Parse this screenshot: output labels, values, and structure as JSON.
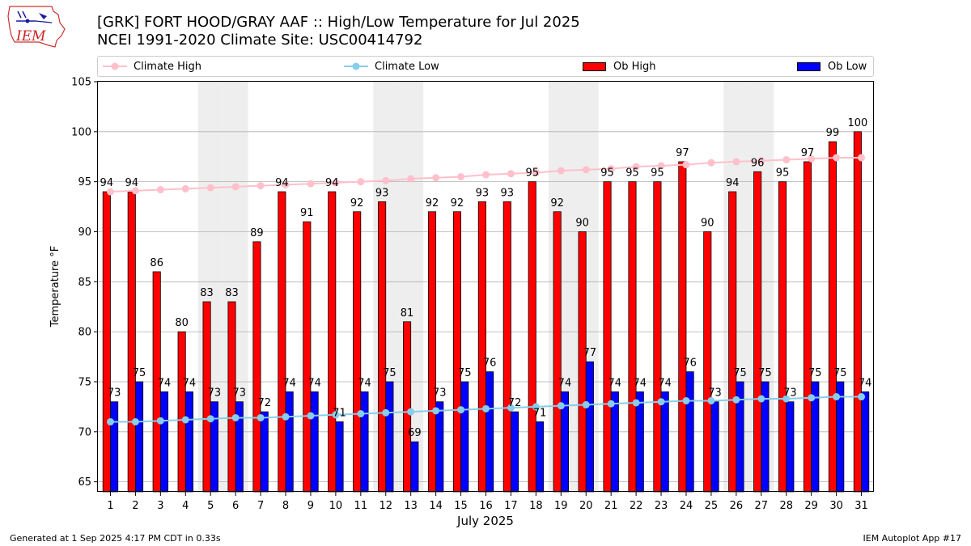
{
  "header": {
    "logo_text": "IEM",
    "title_line1": "[GRK] FORT HOOD/GRAY AAF :: High/Low Temperature for Jul 2025",
    "title_line2": "NCEI 1991-2020 Climate Site: USC00414792"
  },
  "legend": {
    "climate_high": "Climate High",
    "climate_low": "Climate Low",
    "ob_high": "Ob High",
    "ob_low": "Ob Low"
  },
  "colors": {
    "ob_high": "#ff0000",
    "ob_low": "#0000ff",
    "climate_high": "#ffc0cb",
    "climate_low": "#87ceeb",
    "weekend_shade": "#eeeeee",
    "grid": "#b0b0b0"
  },
  "footer": {
    "left": "Generated at 1 Sep 2025 4:17 PM CDT in 0.33s",
    "right": "IEM Autoplot App #17"
  },
  "chart_data": {
    "type": "bar",
    "xlabel": "July 2025",
    "ylabel": "Temperature °F",
    "ylim": [
      64,
      105
    ],
    "yticks": [
      65,
      70,
      75,
      80,
      85,
      90,
      95,
      100,
      105
    ],
    "grid": true,
    "legend_position": "top",
    "categories": [
      "1",
      "2",
      "3",
      "4",
      "5",
      "6",
      "7",
      "8",
      "9",
      "10",
      "11",
      "12",
      "13",
      "14",
      "15",
      "16",
      "17",
      "18",
      "19",
      "20",
      "21",
      "22",
      "23",
      "24",
      "25",
      "26",
      "27",
      "28",
      "29",
      "30",
      "31"
    ],
    "shaded_days": [
      5,
      6,
      12,
      13,
      19,
      20,
      26,
      27
    ],
    "series": [
      {
        "name": "Ob High",
        "kind": "bar",
        "values": [
          94,
          94,
          86,
          80,
          83,
          83,
          89,
          94,
          91,
          94,
          92,
          93,
          81,
          92,
          92,
          93,
          93,
          95,
          92,
          90,
          95,
          95,
          95,
          97,
          90,
          94,
          96,
          95,
          97,
          99,
          100
        ]
      },
      {
        "name": "Ob Low",
        "kind": "bar",
        "values": [
          73,
          75,
          74,
          74,
          73,
          73,
          72,
          74,
          74,
          71,
          74,
          75,
          69,
          73,
          75,
          76,
          72,
          71,
          74,
          77,
          74,
          74,
          74,
          76,
          73,
          75,
          75,
          73,
          75,
          75,
          74
        ]
      },
      {
        "name": "Climate High",
        "kind": "line",
        "values": [
          94.0,
          94.1,
          94.2,
          94.3,
          94.4,
          94.5,
          94.6,
          94.7,
          94.8,
          94.9,
          95.0,
          95.1,
          95.3,
          95.4,
          95.5,
          95.7,
          95.8,
          95.9,
          96.1,
          96.2,
          96.3,
          96.5,
          96.6,
          96.7,
          96.9,
          97.0,
          97.1,
          97.2,
          97.3,
          97.4,
          97.4
        ]
      },
      {
        "name": "Climate Low",
        "kind": "line",
        "values": [
          71.0,
          71.0,
          71.1,
          71.2,
          71.3,
          71.4,
          71.4,
          71.5,
          71.6,
          71.7,
          71.8,
          71.9,
          72.0,
          72.1,
          72.2,
          72.3,
          72.4,
          72.5,
          72.6,
          72.7,
          72.8,
          72.9,
          73.0,
          73.1,
          73.1,
          73.2,
          73.3,
          73.3,
          73.4,
          73.5,
          73.5
        ]
      }
    ]
  }
}
